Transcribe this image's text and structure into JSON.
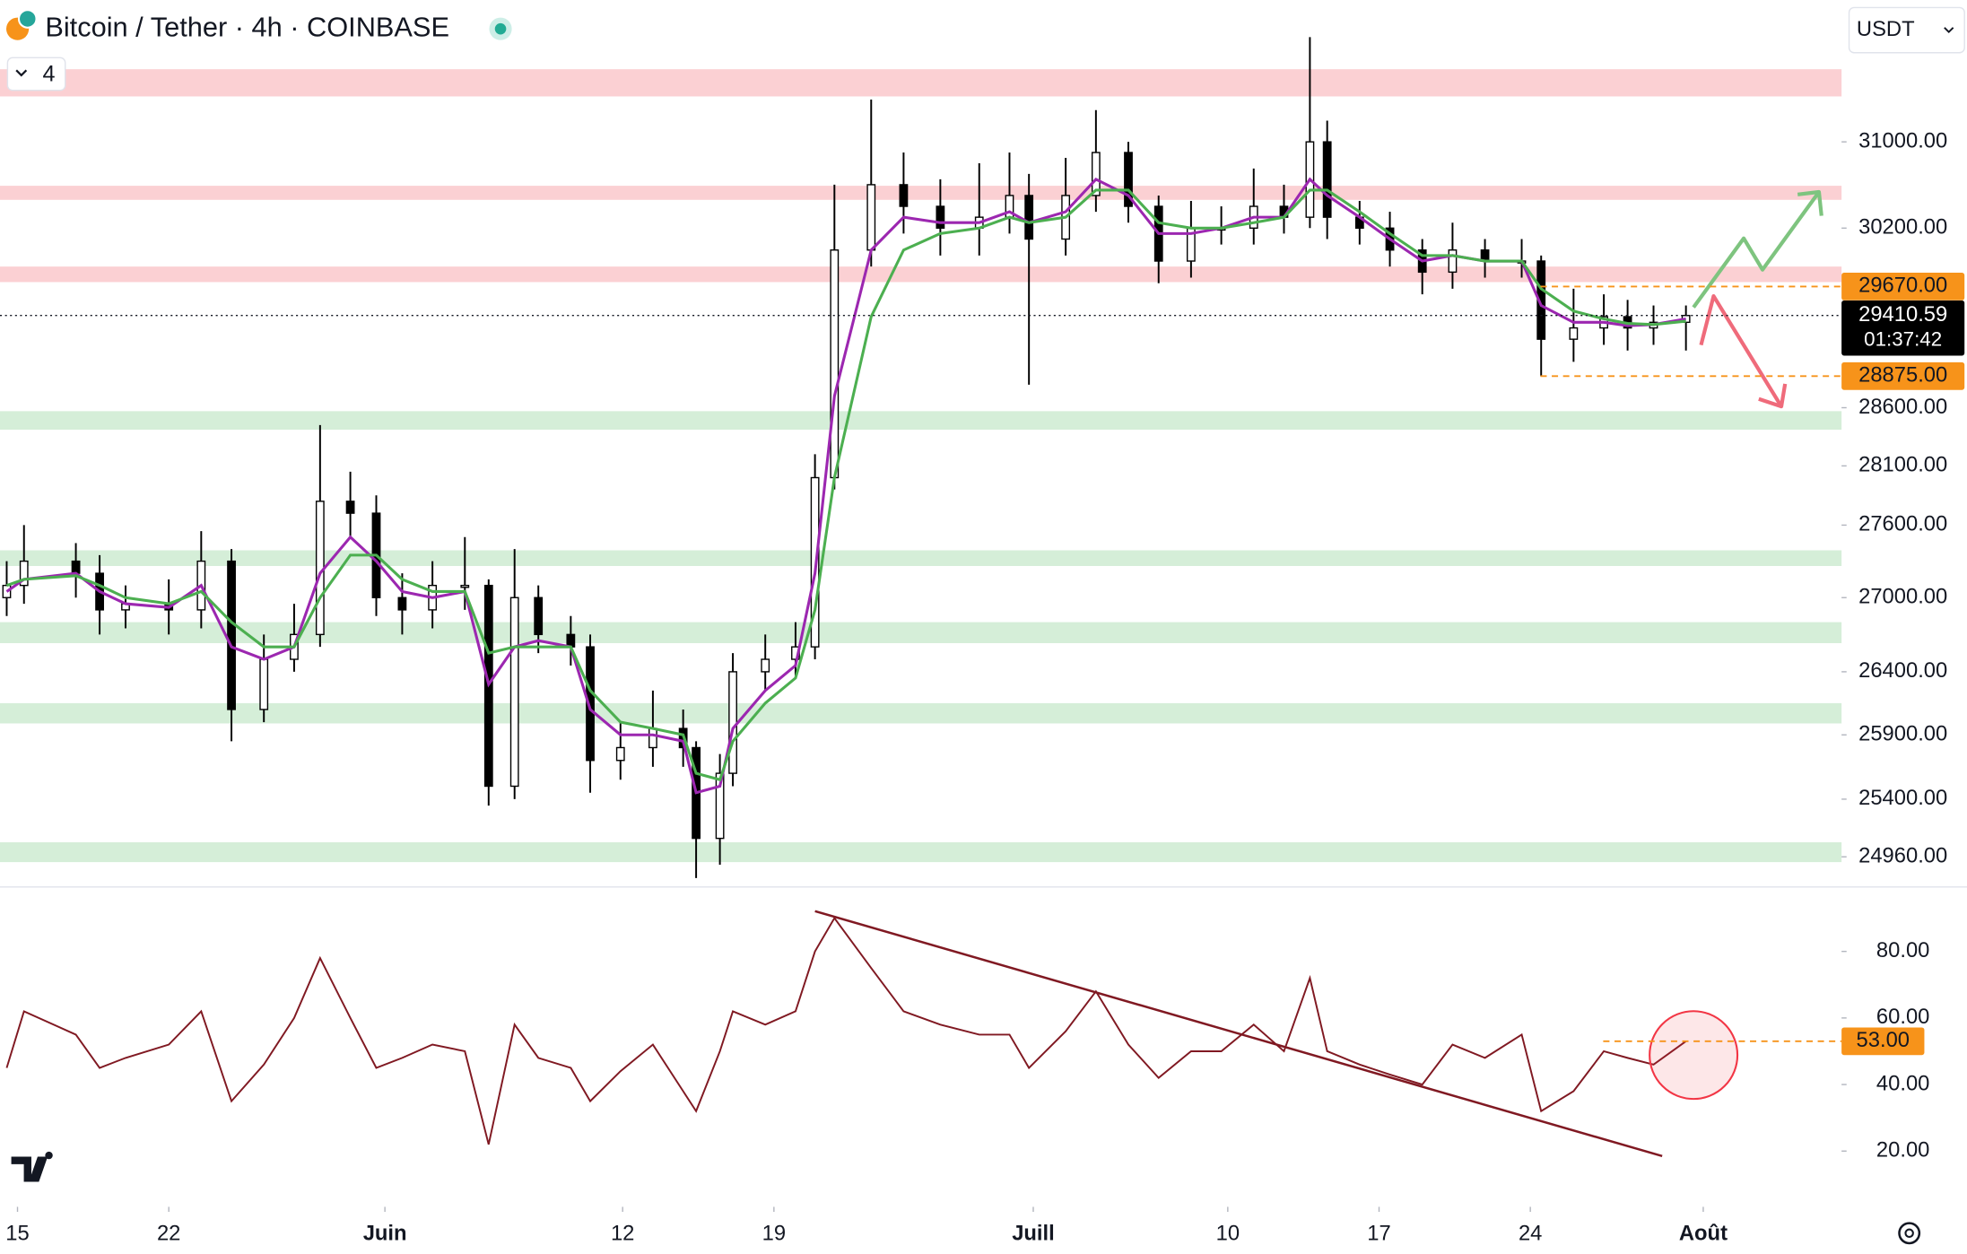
{
  "header": {
    "title": "Bitcoin / Tether · 4h · COINBASE",
    "layout_count": "4",
    "currency": "USDT"
  },
  "chart_data": [
    {
      "type": "candlestick",
      "log_scale": true,
      "xlim": [
        14.19,
        99.4
      ],
      "ylim": [
        24752,
        32362
      ],
      "x": [
        14.5,
        15.3,
        17.7,
        18.8,
        20,
        22,
        23.5,
        24.9,
        26.4,
        27.8,
        29,
        30.4,
        31.6,
        32.8,
        34.2,
        35.7,
        36.8,
        38,
        39.1,
        40.6,
        41.5,
        42.9,
        44.4,
        45.8,
        46.4,
        47.5,
        48.1,
        49.6,
        51,
        51.9,
        52.8,
        54.5,
        56,
        57.7,
        59.5,
        60.9,
        61.8,
        63.5,
        64.9,
        66.4,
        67.8,
        69.3,
        70.7,
        72.2,
        73.6,
        74.8,
        75.6,
        77.1,
        78.5,
        80,
        81.4,
        82.9,
        84.6,
        85.5,
        87,
        88.4,
        89.5,
        90.7,
        92.2
      ],
      "open": [
        27000,
        27100,
        27300,
        27200,
        26900,
        26950,
        26900,
        27300,
        26100,
        26500,
        26700,
        27800,
        27700,
        27000,
        26900,
        27100,
        27100,
        25500,
        27000,
        26700,
        26600,
        25700,
        25800,
        25950,
        25800,
        25100,
        25600,
        26400,
        26500,
        26600,
        28000,
        30000,
        30600,
        30400,
        30200,
        30300,
        30500,
        30100,
        30500,
        30900,
        30400,
        29900,
        30200,
        30200,
        30400,
        30300,
        31000,
        30300,
        30200,
        30000,
        29800,
        30000,
        29900,
        29900,
        29200,
        29300,
        29400,
        29300,
        29350
      ],
      "high": [
        27300,
        27600,
        27450,
        27350,
        27100,
        27150,
        27550,
        27400,
        26700,
        26950,
        28450,
        28050,
        27850,
        27200,
        27300,
        27500,
        27150,
        27400,
        27100,
        26850,
        26700,
        26000,
        26250,
        26100,
        25850,
        25750,
        26550,
        26700,
        26800,
        28200,
        30600,
        31400,
        30900,
        30650,
        30800,
        30900,
        30700,
        30850,
        31300,
        31000,
        30500,
        30450,
        30400,
        30750,
        30600,
        32000,
        31200,
        30450,
        30350,
        30100,
        30250,
        30100,
        30100,
        29950,
        29650,
        29600,
        29550,
        29500,
        29500
      ],
      "low": [
        26850,
        26950,
        27000,
        26700,
        26750,
        26700,
        26750,
        25850,
        26000,
        26400,
        26600,
        27500,
        26850,
        26700,
        26750,
        26900,
        25350,
        25400,
        26550,
        26450,
        25450,
        25550,
        25650,
        25650,
        24800,
        24900,
        25500,
        26250,
        26350,
        26500,
        27900,
        29850,
        30150,
        29950,
        29950,
        30150,
        28800,
        29950,
        30350,
        30250,
        29700,
        29750,
        30050,
        30050,
        30150,
        30200,
        30100,
        30050,
        29850,
        29600,
        29650,
        29750,
        29750,
        28875,
        29000,
        29150,
        29100,
        29150,
        29100
      ],
      "close": [
        27100,
        27300,
        27200,
        26900,
        26950,
        26900,
        27300,
        26100,
        26500,
        26700,
        27800,
        27700,
        27000,
        26900,
        27100,
        27100,
        25500,
        27000,
        26700,
        26600,
        25700,
        25800,
        25950,
        25800,
        25100,
        25600,
        26400,
        26500,
        26600,
        28000,
        30000,
        30600,
        30400,
        30200,
        30300,
        30500,
        30100,
        30500,
        30900,
        30400,
        29900,
        30200,
        30200,
        30400,
        30300,
        31000,
        30300,
        30200,
        30000,
        29800,
        30000,
        29900,
        29900,
        29200,
        29300,
        29400,
        29300,
        29350,
        29410.59
      ],
      "overlays": [
        {
          "color": "#9c27b0",
          "values": [
            27050,
            27150,
            27200,
            27050,
            26950,
            26920,
            27100,
            26600,
            26500,
            26600,
            27200,
            27500,
            27300,
            27050,
            27000,
            27050,
            26300,
            26600,
            26650,
            26600,
            26100,
            25900,
            25900,
            25850,
            25450,
            25500,
            25950,
            26250,
            26450,
            27200,
            28700,
            30000,
            30300,
            30250,
            30250,
            30350,
            30250,
            30350,
            30650,
            30500,
            30150,
            30150,
            30200,
            30300,
            30300,
            30650,
            30500,
            30300,
            30100,
            29900,
            29950,
            29900,
            29900,
            29500,
            29350,
            29350,
            29320,
            29330,
            29380
          ]
        },
        {
          "color": "#4caf50",
          "values": [
            27100,
            27150,
            27180,
            27100,
            27000,
            26950,
            27050,
            26800,
            26600,
            26600,
            27000,
            27350,
            27350,
            27150,
            27050,
            27050,
            26550,
            26600,
            26600,
            26600,
            26250,
            26000,
            25950,
            25900,
            25600,
            25550,
            25850,
            26150,
            26350,
            26900,
            28000,
            29400,
            30000,
            30150,
            30200,
            30300,
            30250,
            30300,
            30550,
            30550,
            30250,
            30200,
            30200,
            30250,
            30300,
            30550,
            30550,
            30350,
            30150,
            29950,
            29950,
            29900,
            29900,
            29650,
            29450,
            29380,
            29340,
            29330,
            29360
          ]
        }
      ],
      "zones": [
        {
          "range": [
            31430,
            31690
          ],
          "color": "#fbd0d3"
        },
        {
          "range": [
            30460,
            30590
          ],
          "color": "#fbd0d3"
        },
        {
          "range": [
            29710,
            29850
          ],
          "color": "#fbd0d3"
        },
        {
          "range": [
            28410,
            28570
          ],
          "color": "#d5eed8"
        },
        {
          "range": [
            27260,
            27390
          ],
          "color": "#d5eed8"
        },
        {
          "range": [
            26630,
            26800
          ],
          "color": "#d5eed8"
        },
        {
          "range": [
            25990,
            26150
          ],
          "color": "#d5eed8"
        },
        {
          "range": [
            24920,
            25070
          ],
          "color": "#d5eed8"
        }
      ],
      "yticks": [
        {
          "value": 31000,
          "label": "31000.00"
        },
        {
          "value": 30200,
          "label": "30200.00"
        },
        {
          "value": 28600,
          "label": "28600.00"
        },
        {
          "value": 28100,
          "label": "28100.00"
        },
        {
          "value": 27600,
          "label": "27600.00"
        },
        {
          "value": 27000,
          "label": "27000.00"
        },
        {
          "value": 26400,
          "label": "26400.00"
        },
        {
          "value": 25900,
          "label": "25900.00"
        },
        {
          "value": 25400,
          "label": "25400.00"
        },
        {
          "value": 24960,
          "label": "24960.00"
        }
      ],
      "price_labels": [
        {
          "value": 29670,
          "label": "29670.00",
          "color": "#f7931a"
        },
        {
          "value": 28875,
          "label": "28875.00",
          "color": "#f7931a"
        }
      ],
      "last_price": {
        "value": 29410.59,
        "label": "29410.59",
        "countdown": "01:37:42"
      }
    },
    {
      "type": "line",
      "color": "#801922",
      "ylim": [
        4,
        99
      ],
      "values": [
        45,
        62,
        55,
        45,
        48,
        52,
        62,
        35,
        46,
        60,
        78,
        60,
        45,
        48,
        52,
        50,
        22,
        58,
        48,
        45,
        35,
        44,
        52,
        38,
        32,
        50,
        62,
        58,
        62,
        80,
        90,
        75,
        62,
        58,
        55,
        55,
        45,
        56,
        68,
        52,
        42,
        50,
        50,
        58,
        50,
        72,
        50,
        46,
        43,
        40,
        52,
        48,
        55,
        32,
        38,
        50,
        48,
        46,
        53
      ],
      "trendline": {
        "x": [
          51.9,
          91.1
        ],
        "values": [
          92.1,
          18.5
        ]
      },
      "yticks": [
        {
          "value": 80,
          "label": "80.00"
        },
        {
          "value": 60,
          "label": "60.00"
        },
        {
          "value": 40,
          "label": "40.00"
        },
        {
          "value": 20,
          "label": "20.00"
        }
      ],
      "price_labels": [
        {
          "value": 53,
          "label": "53.00",
          "color": "#f7931a"
        }
      ],
      "xticks": [
        15,
        22,
        {
          "value": 32,
          "label": "Juin"
        },
        {
          "value": 43,
          "label": "12"
        },
        {
          "value": 50,
          "label": "19"
        },
        {
          "value": 62,
          "label": "Juill"
        },
        {
          "value": 71,
          "label": "10"
        },
        {
          "value": 78,
          "label": "17"
        },
        {
          "value": 85,
          "label": "24"
        },
        {
          "value": 93,
          "label": "Août"
        }
      ]
    }
  ]
}
